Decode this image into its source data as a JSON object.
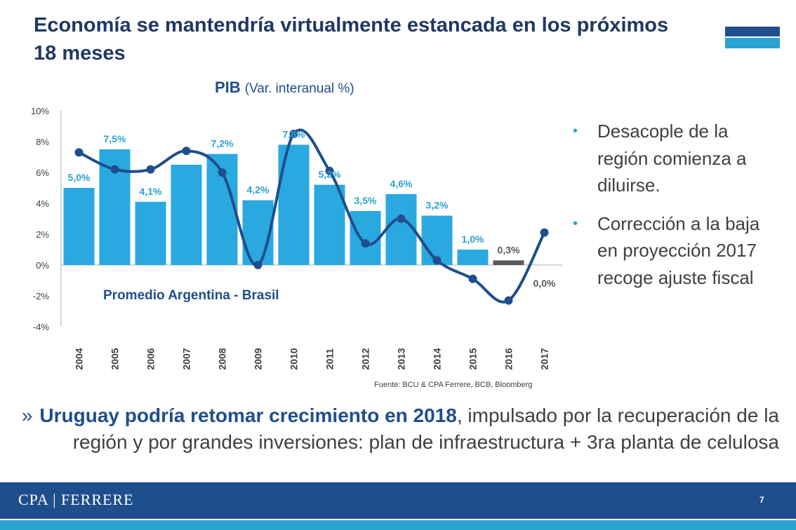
{
  "slide": {
    "title": "Economía se mantendría virtualmente estancada en los próximos 18 meses",
    "bullets": [
      "Desacople de la región comienza a diluirse.",
      "Corrección a la baja en proyección 2017 recoge ajuste fiscal"
    ],
    "note": {
      "marker": "»",
      "bold": "Uruguay podría retomar crecimiento en 2018",
      "rest": ", impulsado por la recuperación de la región y por grandes inversiones: plan de infraestructura + 3ra planta de celulosa"
    },
    "footer": {
      "logo": "CPA | FERRERE",
      "page": "7"
    },
    "colors": {
      "navy": "#1f4e8c",
      "title": "#1f3864",
      "bar": "#29a9e0",
      "bar_projection": "#595959",
      "line": "#1f4e8c",
      "label": "#29a3d0",
      "text": "#404040"
    }
  },
  "chart_data": {
    "type": "bar",
    "title": "PIB",
    "subtitle": "(Var. interanual %)",
    "categories": [
      "2004",
      "2005",
      "2006",
      "2007",
      "2008",
      "2009",
      "2010",
      "2011",
      "2012",
      "2013",
      "2014",
      "2015",
      "2016",
      "2017"
    ],
    "ylim": [
      -4,
      10
    ],
    "yticks": [
      "-4%",
      "-2%",
      "0%",
      "2%",
      "4%",
      "6%",
      "8%",
      "10%"
    ],
    "series": [
      {
        "kind": "bar",
        "values": [
          5.0,
          7.5,
          4.1,
          6.5,
          7.2,
          4.2,
          7.8,
          5.2,
          3.5,
          4.6,
          3.2,
          1.0,
          0.3,
          0.0
        ],
        "data_labels": [
          "5,0%",
          "7,5%",
          "4,1%",
          "",
          "7,2%",
          "4,2%",
          "7,8%",
          "5,2%",
          "3,5%",
          "4,6%",
          "3,2%",
          "1,0%",
          "0,3%",
          "0,0%"
        ],
        "projection_categories": [
          "2016",
          "2017"
        ]
      },
      {
        "kind": "line",
        "name": "Promedio Argentina - Brasil",
        "values": [
          7.3,
          6.2,
          6.2,
          7.4,
          6.0,
          0.0,
          8.5,
          6.1,
          1.4,
          3.0,
          0.3,
          -0.9,
          -2.3,
          2.1
        ]
      }
    ],
    "source": "Fuente: BCU & CPA Ferrere, BCB, Bloomberg"
  }
}
